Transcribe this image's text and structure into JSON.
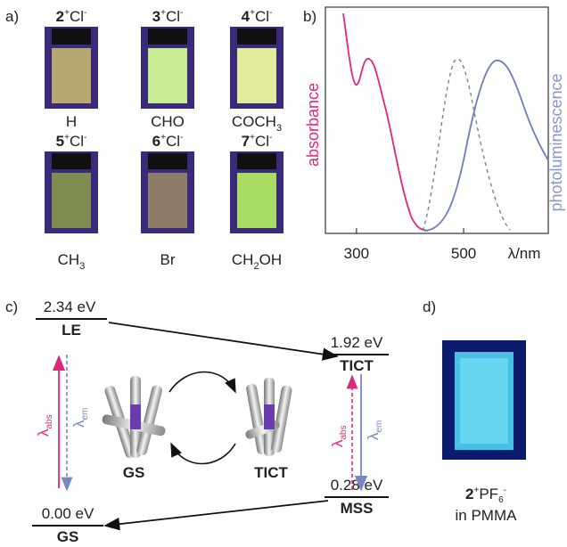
{
  "panels": {
    "a": "a)",
    "b": "b)",
    "c": "c)",
    "d": "d)"
  },
  "vials": [
    {
      "number": "2",
      "cation_charge": "+",
      "anion": "Cl",
      "anion_charge": "-",
      "substituent": [
        "H"
      ]
    },
    {
      "number": "3",
      "cation_charge": "+",
      "anion": "Cl",
      "anion_charge": "-",
      "substituent": [
        "CHO"
      ]
    },
    {
      "number": "4",
      "cation_charge": "+",
      "anion": "Cl",
      "anion_charge": "-",
      "substituent": [
        "COCH",
        "3"
      ]
    },
    {
      "number": "5",
      "cation_charge": "+",
      "anion": "Cl",
      "anion_charge": "-",
      "substituent": [
        "CH",
        "3"
      ]
    },
    {
      "number": "6",
      "cation_charge": "+",
      "anion": "Cl",
      "anion_charge": "-",
      "substituent": [
        "Br"
      ]
    },
    {
      "number": "7",
      "cation_charge": "+",
      "anion": "Cl",
      "anion_charge": "-",
      "substituent": [
        "CH",
        "2",
        "OH"
      ]
    }
  ],
  "spectra": {
    "y_label_left": "absorbance",
    "y_label_right": "photoluminescence",
    "xlim": [
      242,
      658
    ],
    "xticks": [
      300,
      500
    ],
    "x_label": "λ/nm"
  },
  "diagram": {
    "le": {
      "energy": "2.34 eV",
      "label": "LE"
    },
    "tict": {
      "energy": "1.92 eV",
      "label": "TICT"
    },
    "mss": {
      "energy": "0.28 eV",
      "label": "MSS"
    },
    "gs": {
      "energy": "0.00 eV",
      "label": "GS"
    },
    "lambda": "λ",
    "abs": "abs",
    "em": "em",
    "molecule_gs": "GS",
    "molecule_tict": "TICT"
  },
  "film": {
    "number": "2",
    "cation_charge": "+",
    "anion": "PF",
    "anion_sub": "6",
    "anion_charge": "-",
    "matrix": "in PMMA"
  }
}
